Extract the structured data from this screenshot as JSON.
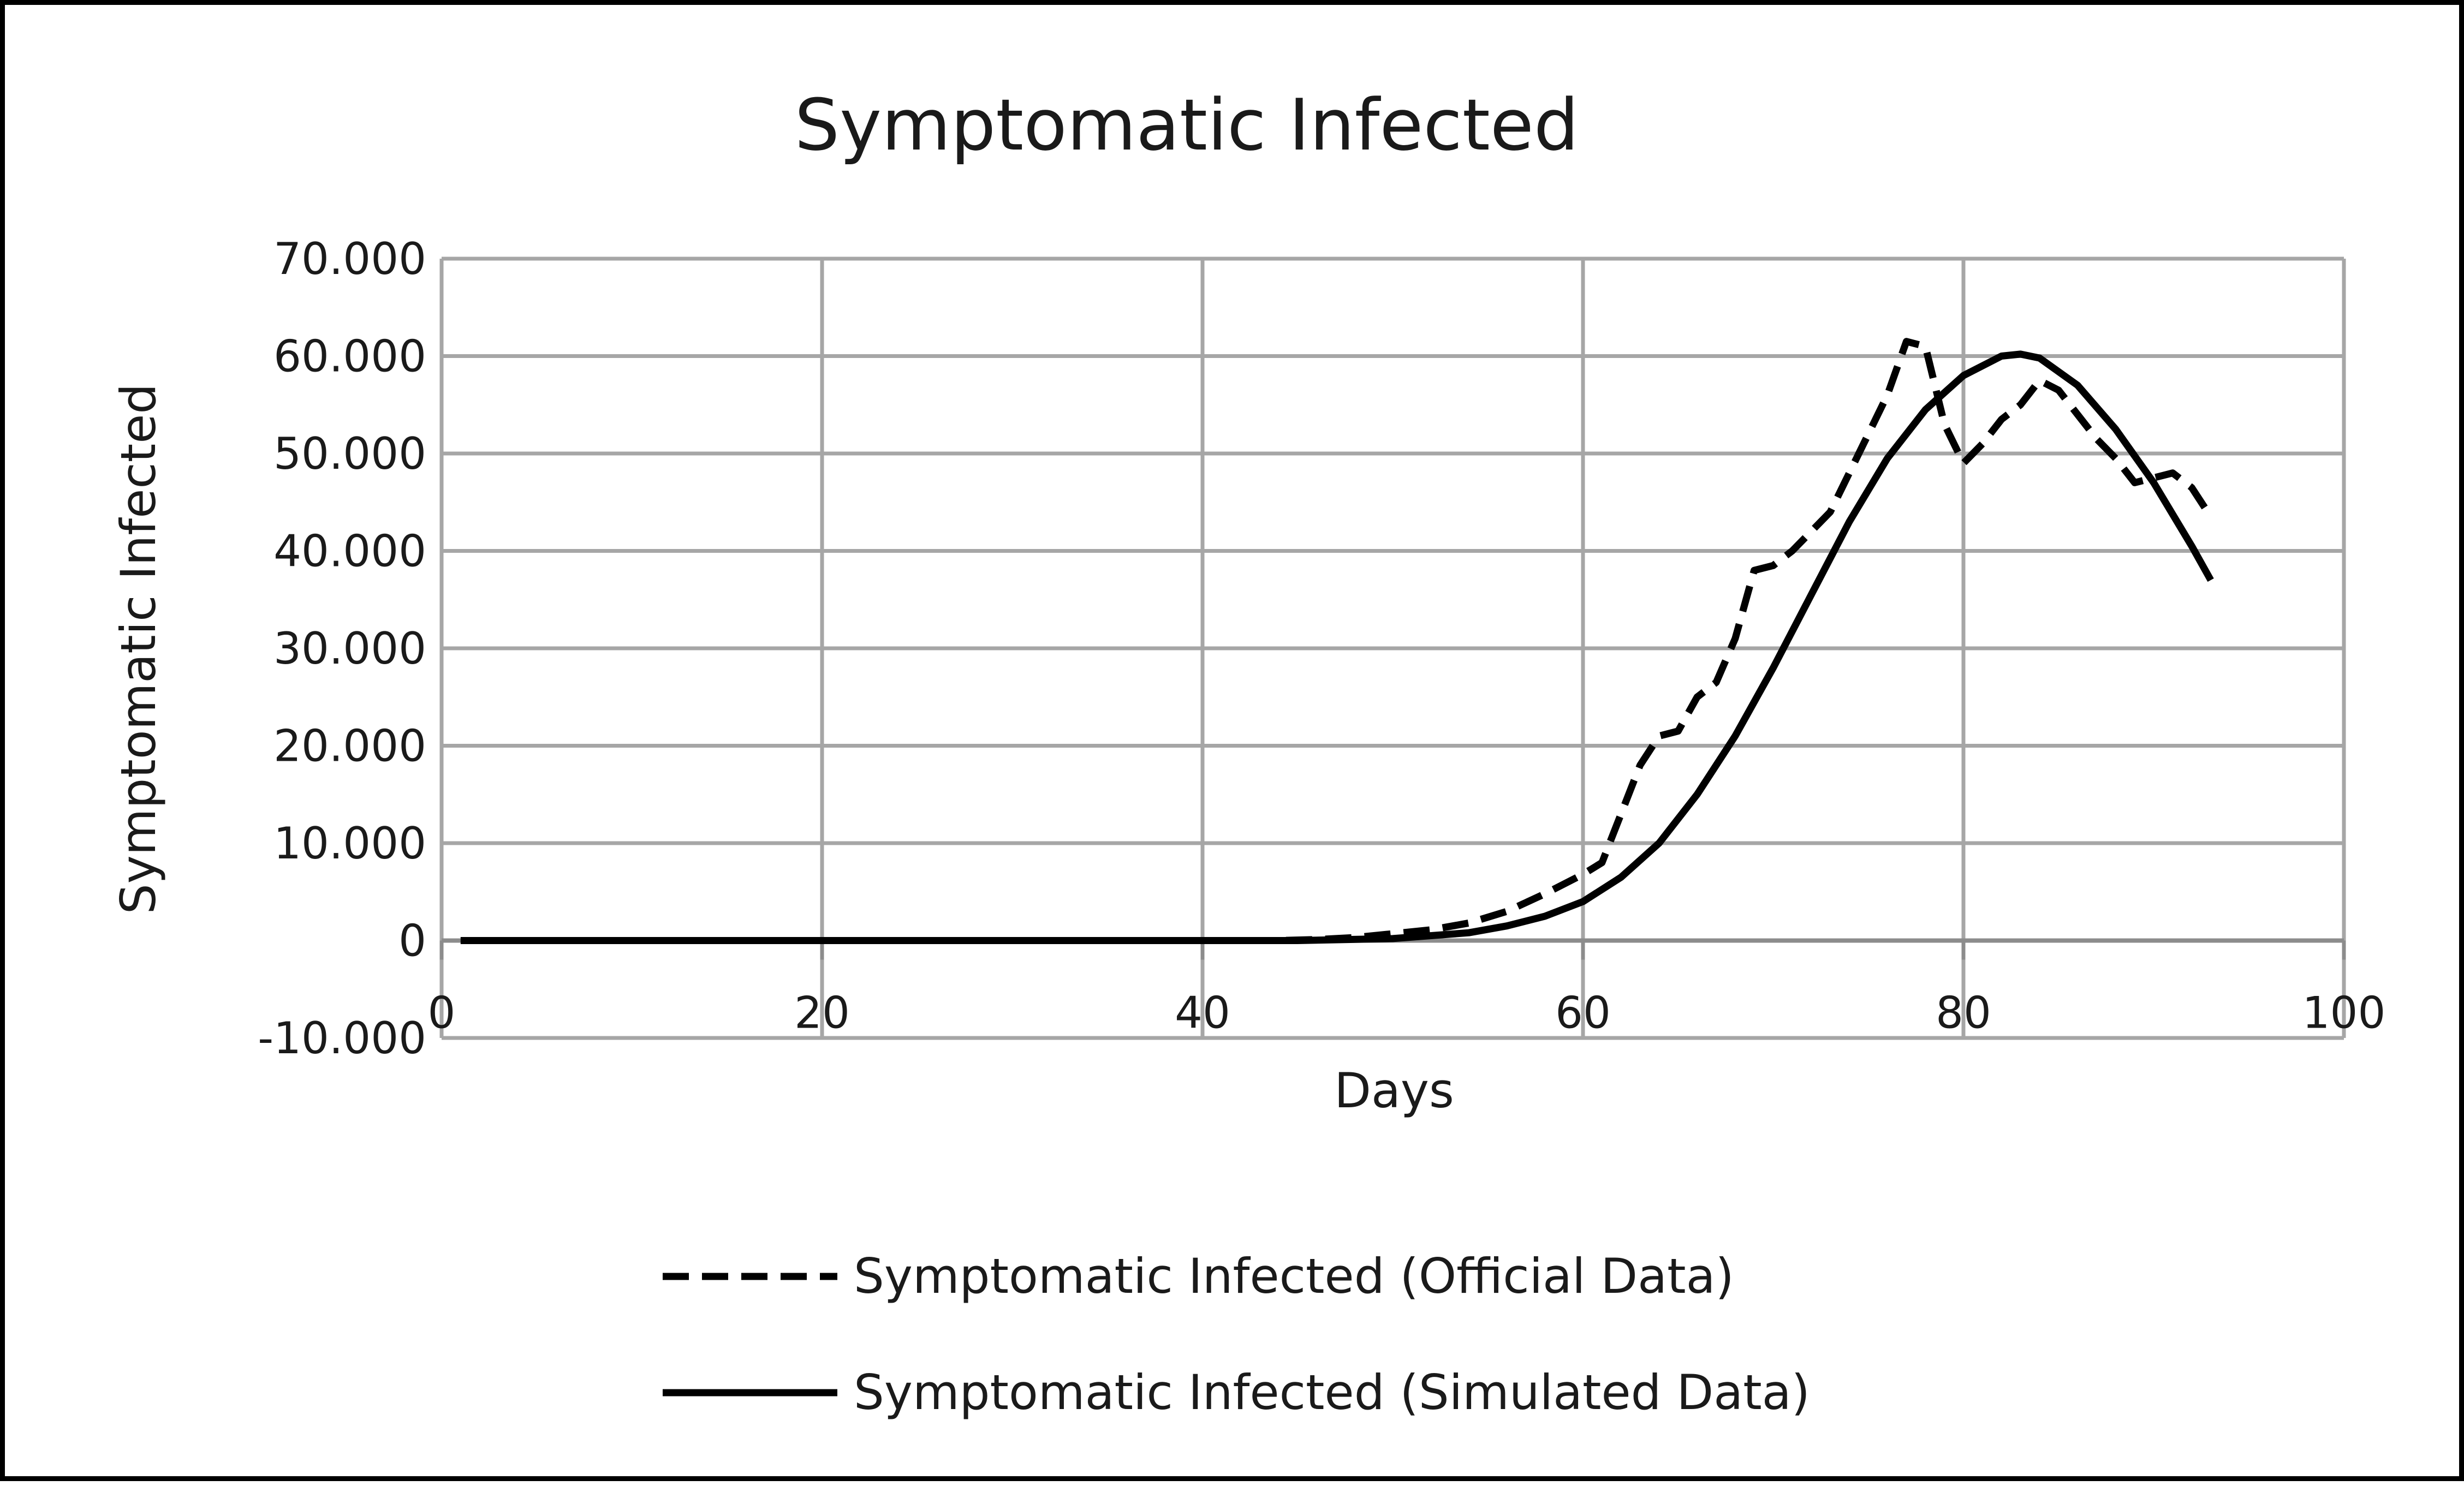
{
  "chart_data": {
    "type": "line",
    "title": "Symptomatic Infected",
    "xlabel": "Days",
    "ylabel": "Symptomatic Infected",
    "xlim": [
      0,
      100
    ],
    "ylim": [
      -10000,
      70000
    ],
    "x_ticks": [
      0,
      20,
      40,
      60,
      80,
      100
    ],
    "x_tick_labels": [
      "0",
      "20",
      "40",
      "60",
      "80",
      "100"
    ],
    "y_ticks": [
      -10000,
      0,
      10000,
      20000,
      30000,
      40000,
      50000,
      60000,
      70000
    ],
    "y_tick_labels": [
      "-10.000",
      "0",
      "10.000",
      "20.000",
      "30.000",
      "40.000",
      "50.000",
      "60.000",
      "70.000"
    ],
    "grid": true,
    "legend_position": "bottom",
    "series": [
      {
        "name": "Symptomatic Infected (Official Data)",
        "style": "dashed",
        "color": "#000000",
        "x": [
          1,
          44,
          46,
          48,
          50,
          52,
          54,
          56,
          58,
          60,
          61,
          62,
          63,
          64,
          65,
          66,
          67,
          68,
          69,
          70,
          71,
          72,
          73,
          74,
          75,
          76,
          77,
          78,
          79,
          80,
          81,
          82,
          83,
          84,
          85,
          86,
          87,
          88,
          89,
          90,
          91,
          92,
          93
        ],
        "y": [
          0,
          0,
          100,
          300,
          700,
          1100,
          1800,
          3000,
          4800,
          6800,
          8000,
          13000,
          18000,
          21000,
          21500,
          25000,
          26500,
          31000,
          38000,
          38500,
          40000,
          42000,
          44000,
          48000,
          52000,
          56000,
          61500,
          61000,
          53000,
          49000,
          51000,
          53500,
          55000,
          57500,
          56500,
          54000,
          51500,
          49500,
          47000,
          47500,
          48000,
          46500,
          43500
        ]
      },
      {
        "name": "Symptomatic Infected (Simulated Data)",
        "style": "solid",
        "color": "#000000",
        "x": [
          1,
          45,
          50,
          54,
          56,
          58,
          60,
          62,
          64,
          66,
          68,
          70,
          72,
          74,
          76,
          78,
          80,
          82,
          83,
          84,
          86,
          88,
          90,
          92,
          93
        ],
        "y": [
          0,
          0,
          200,
          800,
          1500,
          2500,
          4000,
          6500,
          10000,
          15000,
          21000,
          28000,
          35500,
          43000,
          49500,
          54500,
          58000,
          60000,
          60200,
          59800,
          57000,
          52500,
          47000,
          40500,
          37000
        ]
      }
    ]
  }
}
